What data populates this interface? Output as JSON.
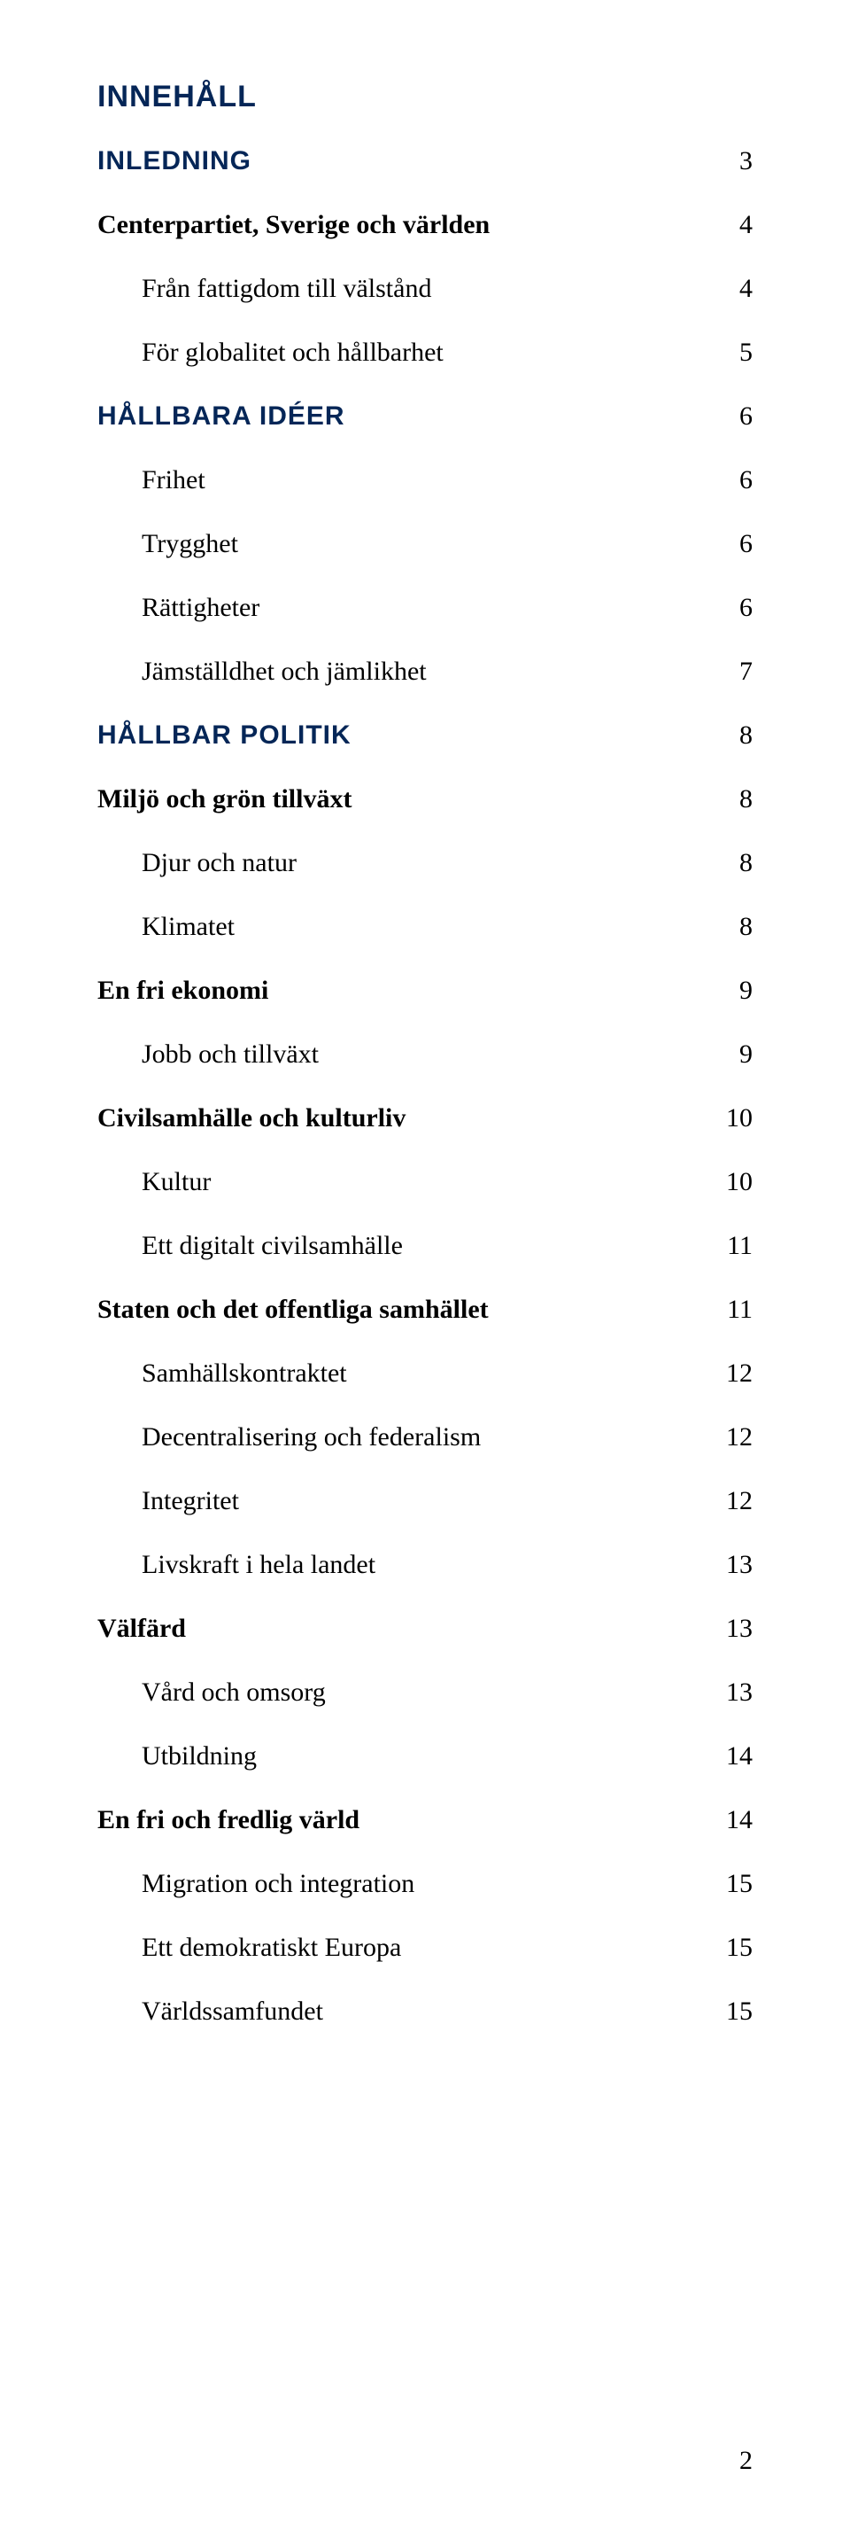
{
  "colors": {
    "heading": "#052657",
    "text": "#000000",
    "background": "#ffffff"
  },
  "typography": {
    "heading_family": "Arial, Helvetica, sans-serif",
    "body_family": "Georgia, 'Times New Roman', serif",
    "heading_size": 34,
    "section_heading_size": 30,
    "body_size": 30
  },
  "topHeading": "INNEHÅLL",
  "entries": [
    {
      "type": "section",
      "label": "INLEDNING",
      "page": "3"
    },
    {
      "type": "l0",
      "label": "Centerpartiet, Sverige och världen",
      "page": "4"
    },
    {
      "type": "l1",
      "label": "Från fattigdom till välstånd",
      "page": "4"
    },
    {
      "type": "l1",
      "label": "För globalitet och hållbarhet",
      "page": "5"
    },
    {
      "type": "section",
      "label": "HÅLLBARA IDÉER",
      "page": "6"
    },
    {
      "type": "l1",
      "label": "Frihet",
      "page": "6"
    },
    {
      "type": "l1",
      "label": "Trygghet",
      "page": "6"
    },
    {
      "type": "l1",
      "label": "Rättigheter",
      "page": "6"
    },
    {
      "type": "l1",
      "label": "Jämställdhet och jämlikhet",
      "page": "7"
    },
    {
      "type": "section",
      "label": "HÅLLBAR POLITIK",
      "page": "8"
    },
    {
      "type": "l0",
      "label": "Miljö och grön tillväxt",
      "page": "8"
    },
    {
      "type": "l1",
      "label": "Djur och natur",
      "page": "8"
    },
    {
      "type": "l1",
      "label": "Klimatet",
      "page": "8"
    },
    {
      "type": "l0",
      "label": "En fri ekonomi",
      "page": "9"
    },
    {
      "type": "l1",
      "label": "Jobb och tillväxt",
      "page": "9"
    },
    {
      "type": "l0",
      "label": "Civilsamhälle och kulturliv",
      "page": "10"
    },
    {
      "type": "l1",
      "label": "Kultur",
      "page": "10"
    },
    {
      "type": "l1",
      "label": "Ett digitalt civilsamhälle",
      "page": "11"
    },
    {
      "type": "l0",
      "label": "Staten och det offentliga samhället",
      "page": "11"
    },
    {
      "type": "l1",
      "label": "Samhällskontraktet",
      "page": "12"
    },
    {
      "type": "l1",
      "label": "Decentralisering och federalism",
      "page": "12"
    },
    {
      "type": "l1",
      "label": "Integritet",
      "page": "12"
    },
    {
      "type": "l1",
      "label": "Livskraft i hela landet",
      "page": "13"
    },
    {
      "type": "l0",
      "label": "Välfärd",
      "page": "13"
    },
    {
      "type": "l1",
      "label": "Vård och omsorg",
      "page": "13"
    },
    {
      "type": "l1",
      "label": "Utbildning",
      "page": "14"
    },
    {
      "type": "l0",
      "label": "En fri och fredlig värld",
      "page": "14"
    },
    {
      "type": "l1",
      "label": "Migration och integration",
      "page": "15"
    },
    {
      "type": "l1",
      "label": "Ett demokratiskt Europa",
      "page": "15"
    },
    {
      "type": "l1",
      "label": "Världssamfundet",
      "page": "15"
    }
  ],
  "footerPage": "2"
}
